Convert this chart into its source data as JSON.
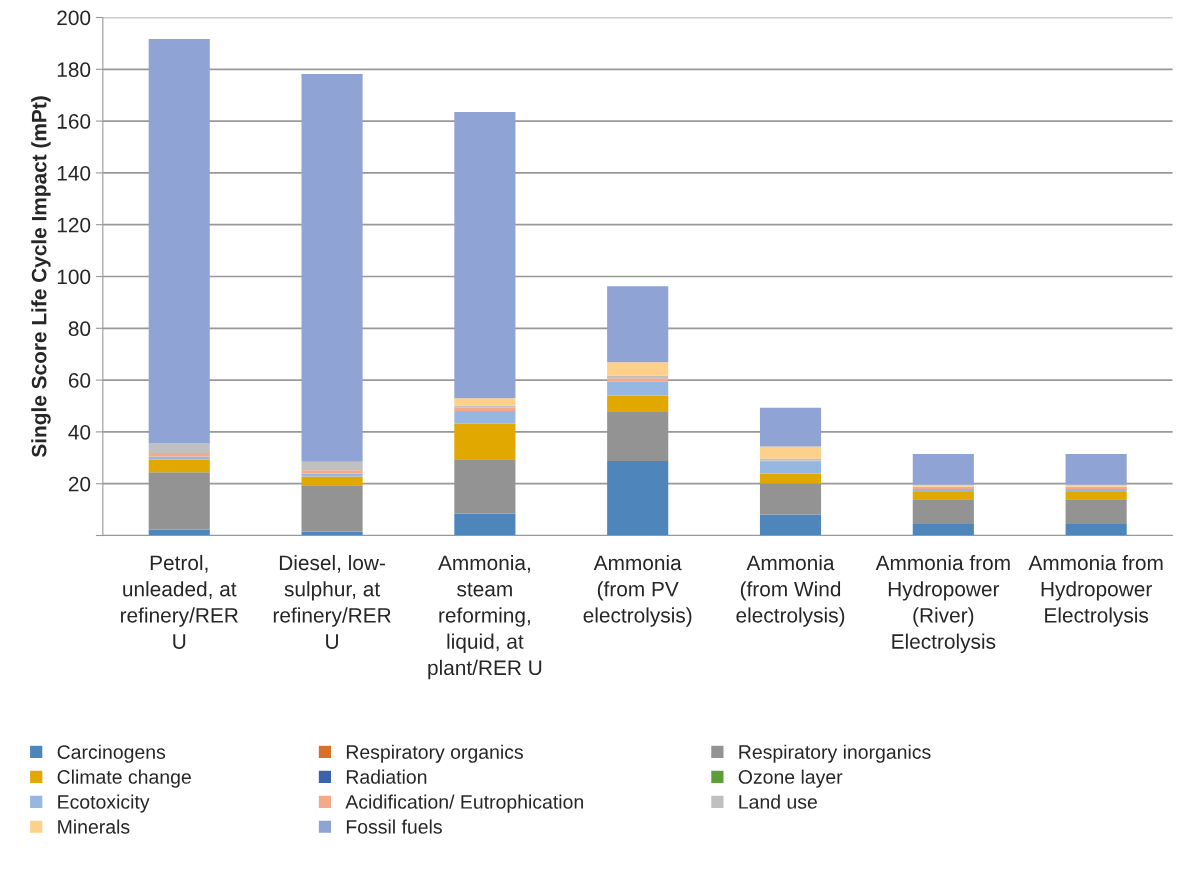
{
  "chart_data": {
    "type": "bar",
    "stacked": true,
    "ylabel": "Single Score Life Cycle Impact (mPt)",
    "categories": [
      "Petrol, unleaded, at refinery/RER U",
      "Diesel, low-sulphur, at refinery/RER U",
      "Ammonia, steam reforming, liquid, at plant/RER U",
      "Ammonia (from PV electrolysis)",
      "Ammonia (from Wind electrolysis)",
      "Ammonia from Hydropower (River) Electrolysis",
      "Ammonia from Hydropower Electrolysis"
    ],
    "series": [
      {
        "name": "Carcinogens",
        "color": "#4e86bb",
        "values": [
          2.3,
          1.5,
          8.5,
          28.8,
          8.1,
          4.4,
          4.4
        ]
      },
      {
        "name": "Respiratory organics",
        "color": "#d8702a",
        "values": [
          0,
          0,
          0,
          0,
          0,
          0,
          0
        ]
      },
      {
        "name": "Respiratory inorganics",
        "color": "#939393",
        "values": [
          22.1,
          17.9,
          20.9,
          18.9,
          12.0,
          9.6,
          9.6
        ]
      },
      {
        "name": "Climate change",
        "color": "#e0a800",
        "values": [
          4.8,
          3.4,
          13.7,
          6.4,
          3.8,
          2.8,
          2.8
        ]
      },
      {
        "name": "Radiation",
        "color": "#3b62ad",
        "values": [
          0,
          0,
          0,
          0,
          0,
          0,
          0
        ]
      },
      {
        "name": "Ozone layer",
        "color": "#5e9e3a",
        "values": [
          0,
          0,
          0,
          0,
          0,
          0,
          0
        ]
      },
      {
        "name": "Ecotoxicity",
        "color": "#96b8e0",
        "values": [
          1.3,
          1.1,
          5.0,
          5.5,
          4.5,
          1.2,
          1.2
        ]
      },
      {
        "name": "Acidification/ Eutrophication",
        "color": "#f4a98a",
        "values": [
          1.4,
          1.3,
          1.2,
          1.1,
          0.5,
          0.8,
          0.8
        ]
      },
      {
        "name": "Land use",
        "color": "#c0c0c0",
        "values": [
          3.6,
          3.3,
          0.8,
          1.0,
          0.8,
          null,
          null
        ]
      },
      {
        "name": "Minerals",
        "color": "#ffd08a",
        "values": [
          0,
          0,
          2.9,
          5.2,
          4.7,
          0.8,
          0.8
        ]
      },
      {
        "name": "Fossil fuels",
        "color": "#8fa3d4",
        "values": [
          156.2,
          149.7,
          110.5,
          29.3,
          14.9,
          11.9,
          11.9
        ]
      }
    ],
    "ylim": [
      0,
      200
    ],
    "yticks": [
      {
        "value": 0,
        "label": null
      },
      20,
      40,
      60,
      80,
      100,
      120,
      140,
      160,
      180,
      200
    ],
    "grid": "y",
    "legend": "bottom"
  }
}
